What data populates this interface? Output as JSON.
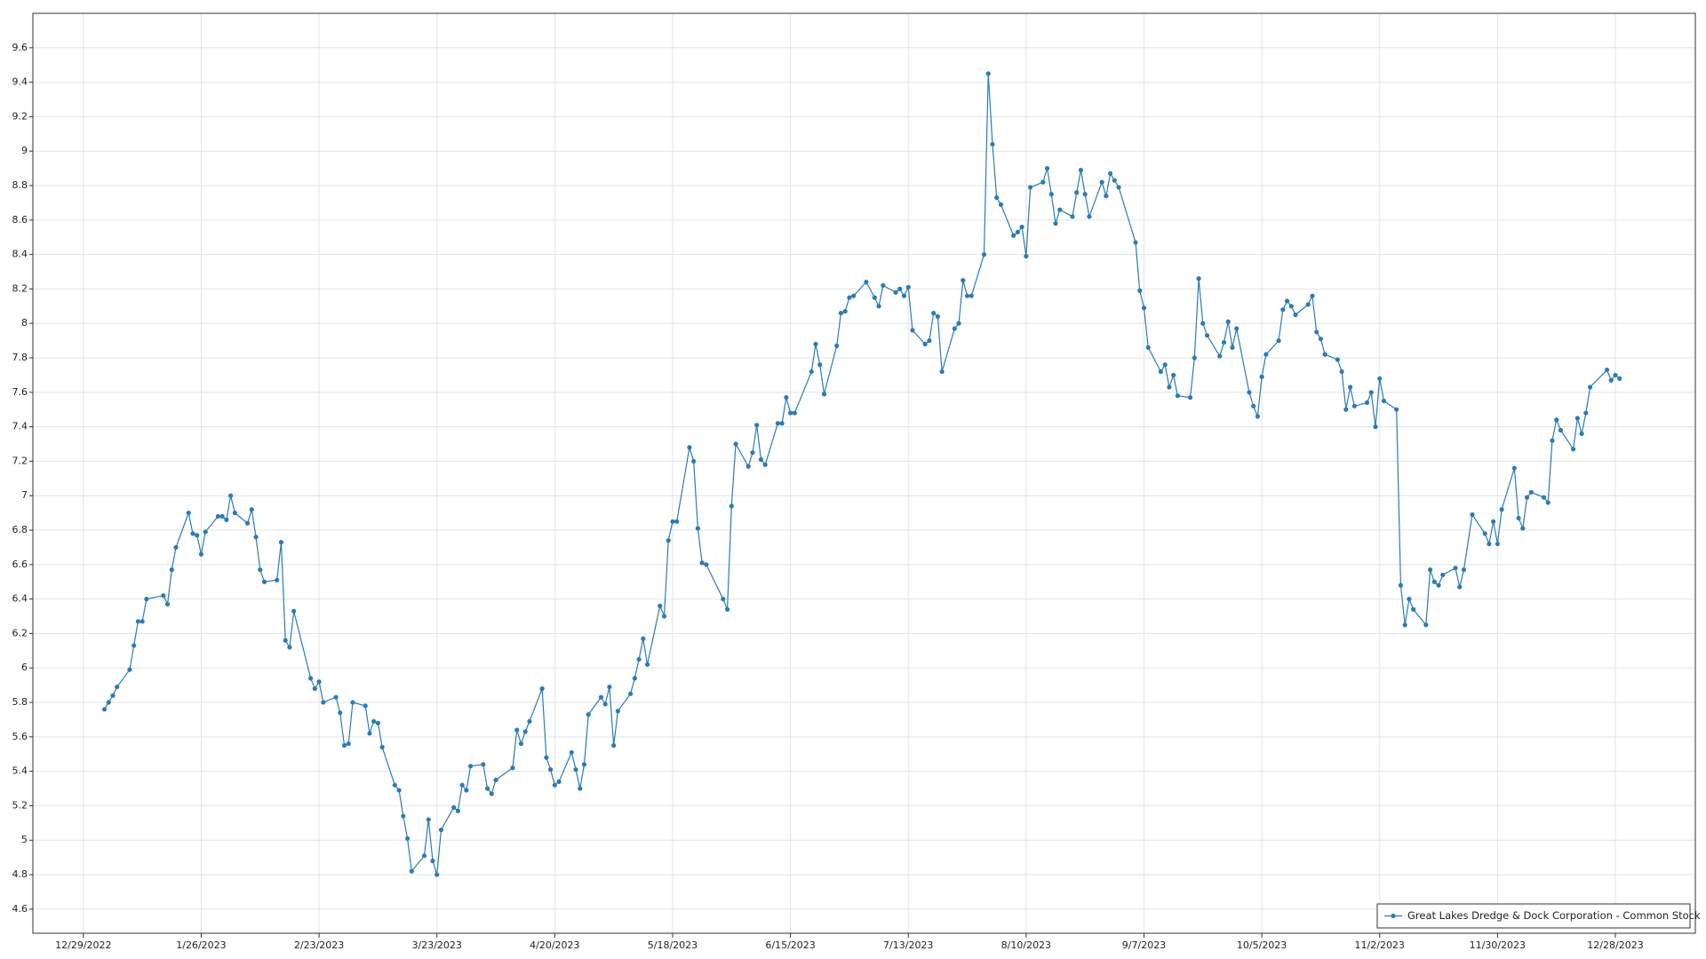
{
  "chart_data": {
    "type": "line",
    "x": [
      "1/3/2023",
      "1/4/2023",
      "1/5/2023",
      "1/6/2023",
      "1/9/2023",
      "1/10/2023",
      "1/11/2023",
      "1/12/2023",
      "1/13/2023",
      "1/17/2023",
      "1/18/2023",
      "1/19/2023",
      "1/20/2023",
      "1/23/2023",
      "1/24/2023",
      "1/25/2023",
      "1/26/2023",
      "1/27/2023",
      "1/30/2023",
      "1/31/2023",
      "2/1/2023",
      "2/2/2023",
      "2/3/2023",
      "2/6/2023",
      "2/7/2023",
      "2/8/2023",
      "2/9/2023",
      "2/10/2023",
      "2/13/2023",
      "2/14/2023",
      "2/15/2023",
      "2/16/2023",
      "2/17/2023",
      "2/21/2023",
      "2/22/2023",
      "2/23/2023",
      "2/24/2023",
      "2/27/2023",
      "2/28/2023",
      "3/1/2023",
      "3/2/2023",
      "3/3/2023",
      "3/6/2023",
      "3/7/2023",
      "3/8/2023",
      "3/9/2023",
      "3/10/2023",
      "3/13/2023",
      "3/14/2023",
      "3/15/2023",
      "3/16/2023",
      "3/17/2023",
      "3/20/2023",
      "3/21/2023",
      "3/22/2023",
      "3/23/2023",
      "3/24/2023",
      "3/27/2023",
      "3/28/2023",
      "3/29/2023",
      "3/30/2023",
      "3/31/2023",
      "4/3/2023",
      "4/4/2023",
      "4/5/2023",
      "4/6/2023",
      "4/10/2023",
      "4/11/2023",
      "4/12/2023",
      "4/13/2023",
      "4/14/2023",
      "4/17/2023",
      "4/18/2023",
      "4/19/2023",
      "4/20/2023",
      "4/21/2023",
      "4/24/2023",
      "4/25/2023",
      "4/26/2023",
      "4/27/2023",
      "4/28/2023",
      "5/1/2023",
      "5/2/2023",
      "5/3/2023",
      "5/4/2023",
      "5/5/2023",
      "5/8/2023",
      "5/9/2023",
      "5/10/2023",
      "5/11/2023",
      "5/12/2023",
      "5/15/2023",
      "5/16/2023",
      "5/17/2023",
      "5/18/2023",
      "5/19/2023",
      "5/22/2023",
      "5/23/2023",
      "5/24/2023",
      "5/25/2023",
      "5/26/2023",
      "5/30/2023",
      "5/31/2023",
      "6/1/2023",
      "6/2/2023",
      "6/5/2023",
      "6/6/2023",
      "6/7/2023",
      "6/8/2023",
      "6/9/2023",
      "6/12/2023",
      "6/13/2023",
      "6/14/2023",
      "6/15/2023",
      "6/16/2023",
      "6/20/2023",
      "6/21/2023",
      "6/22/2023",
      "6/23/2023",
      "6/26/2023",
      "6/27/2023",
      "6/28/2023",
      "6/29/2023",
      "6/30/2023",
      "7/3/2023",
      "7/5/2023",
      "7/6/2023",
      "7/7/2023",
      "7/10/2023",
      "7/11/2023",
      "7/12/2023",
      "7/13/2023",
      "7/14/2023",
      "7/17/2023",
      "7/18/2023",
      "7/19/2023",
      "7/20/2023",
      "7/21/2023",
      "7/24/2023",
      "7/25/2023",
      "7/26/2023",
      "7/27/2023",
      "7/28/2023",
      "7/31/2023",
      "8/1/2023",
      "8/2/2023",
      "8/3/2023",
      "8/4/2023",
      "8/7/2023",
      "8/8/2023",
      "8/9/2023",
      "8/10/2023",
      "8/11/2023",
      "8/14/2023",
      "8/15/2023",
      "8/16/2023",
      "8/17/2023",
      "8/18/2023",
      "8/21/2023",
      "8/22/2023",
      "8/23/2023",
      "8/24/2023",
      "8/25/2023",
      "8/28/2023",
      "8/29/2023",
      "8/30/2023",
      "8/31/2023",
      "9/1/2023",
      "9/5/2023",
      "9/6/2023",
      "9/7/2023",
      "9/8/2023",
      "9/11/2023",
      "9/12/2023",
      "9/13/2023",
      "9/14/2023",
      "9/15/2023",
      "9/18/2023",
      "9/19/2023",
      "9/20/2023",
      "9/21/2023",
      "9/22/2023",
      "9/25/2023",
      "9/26/2023",
      "9/27/2023",
      "9/28/2023",
      "9/29/2023",
      "10/2/2023",
      "10/3/2023",
      "10/4/2023",
      "10/5/2023",
      "10/6/2023",
      "10/9/2023",
      "10/10/2023",
      "10/11/2023",
      "10/12/2023",
      "10/13/2023",
      "10/16/2023",
      "10/17/2023",
      "10/18/2023",
      "10/19/2023",
      "10/20/2023",
      "10/23/2023",
      "10/24/2023",
      "10/25/2023",
      "10/26/2023",
      "10/27/2023",
      "10/30/2023",
      "10/31/2023",
      "11/1/2023",
      "11/2/2023",
      "11/3/2023",
      "11/6/2023",
      "11/7/2023",
      "11/8/2023",
      "11/9/2023",
      "11/10/2023",
      "11/13/2023",
      "11/14/2023",
      "11/15/2023",
      "11/16/2023",
      "11/17/2023",
      "11/20/2023",
      "11/21/2023",
      "11/22/2023",
      "11/24/2023",
      "11/27/2023",
      "11/28/2023",
      "11/29/2023",
      "11/30/2023",
      "12/1/2023",
      "12/4/2023",
      "12/5/2023",
      "12/6/2023",
      "12/7/2023",
      "12/8/2023",
      "12/11/2023",
      "12/12/2023",
      "12/13/2023",
      "12/14/2023",
      "12/15/2023",
      "12/18/2023",
      "12/19/2023",
      "12/20/2023",
      "12/21/2023",
      "12/22/2023",
      "12/26/2023",
      "12/27/2023",
      "12/28/2023",
      "12/29/2023"
    ],
    "series": [
      {
        "name": "Great Lakes Dredge & Dock Corporation - Common Stock",
        "color": "#2b7bb5",
        "values": [
          5.76,
          5.8,
          5.84,
          5.89,
          5.99,
          6.13,
          6.27,
          6.27,
          6.4,
          6.42,
          6.37,
          6.57,
          6.7,
          6.9,
          6.78,
          6.77,
          6.66,
          6.79,
          6.88,
          6.88,
          6.86,
          7.0,
          6.9,
          6.84,
          6.92,
          6.76,
          6.57,
          6.5,
          6.51,
          6.73,
          6.16,
          6.12,
          6.33,
          5.94,
          5.88,
          5.92,
          5.8,
          5.83,
          5.74,
          5.55,
          5.56,
          5.8,
          5.78,
          5.62,
          5.69,
          5.68,
          5.54,
          5.32,
          5.29,
          5.14,
          5.01,
          4.82,
          4.91,
          5.12,
          4.88,
          4.8,
          5.06,
          5.19,
          5.17,
          5.32,
          5.29,
          5.43,
          5.44,
          5.3,
          5.27,
          5.35,
          5.42,
          5.64,
          5.56,
          5.63,
          5.69,
          5.88,
          5.48,
          5.41,
          5.32,
          5.34,
          5.51,
          5.41,
          5.3,
          5.44,
          5.73,
          5.83,
          5.79,
          5.89,
          5.55,
          5.75,
          5.85,
          5.94,
          6.05,
          6.17,
          6.02,
          6.36,
          6.3,
          6.74,
          6.85,
          6.85,
          7.28,
          7.2,
          6.81,
          6.61,
          6.6,
          6.4,
          6.34,
          6.94,
          7.3,
          7.17,
          7.25,
          7.41,
          7.21,
          7.18,
          7.42,
          7.42,
          7.57,
          7.48,
          7.48,
          7.72,
          7.88,
          7.76,
          7.59,
          7.87,
          8.06,
          8.07,
          8.15,
          8.16,
          8.24,
          8.15,
          8.1,
          8.22,
          8.18,
          8.2,
          8.16,
          8.21,
          7.96,
          7.88,
          7.9,
          8.06,
          8.04,
          7.72,
          7.97,
          8.0,
          8.25,
          8.16,
          8.16,
          8.4,
          9.45,
          9.04,
          8.73,
          8.69,
          8.51,
          8.53,
          8.56,
          8.39,
          8.79,
          8.82,
          8.9,
          8.75,
          8.58,
          8.66,
          8.62,
          8.76,
          8.89,
          8.75,
          8.62,
          8.82,
          8.74,
          8.87,
          8.83,
          8.79,
          8.47,
          8.19,
          8.09,
          7.86,
          7.72,
          7.76,
          7.63,
          7.7,
          7.58,
          7.57,
          7.8,
          8.26,
          8.0,
          7.93,
          7.81,
          7.89,
          8.01,
          7.86,
          7.97,
          7.6,
          7.52,
          7.46,
          7.69,
          7.82,
          7.9,
          8.08,
          8.13,
          8.1,
          8.05,
          8.11,
          8.16,
          7.95,
          7.91,
          7.82,
          7.79,
          7.72,
          7.5,
          7.63,
          7.52,
          7.54,
          7.6,
          7.4,
          7.68,
          7.55,
          7.5,
          6.48,
          6.25,
          6.4,
          6.34,
          6.25,
          6.57,
          6.5,
          6.48,
          6.54,
          6.58,
          6.47,
          6.57,
          6.89,
          6.78,
          6.72,
          6.85,
          6.72,
          6.92,
          7.16,
          6.87,
          6.81,
          6.99,
          7.02,
          6.99,
          6.96,
          7.32,
          7.44,
          7.38,
          7.27,
          7.45,
          7.36,
          7.48,
          7.63,
          7.73,
          7.67,
          7.7,
          7.68
        ]
      }
    ],
    "xlim": [
      "12/17/2022",
      "1/16/2024"
    ],
    "xticks": [
      "12/29/2022",
      "1/26/2023",
      "2/23/2023",
      "3/23/2023",
      "4/20/2023",
      "5/18/2023",
      "6/15/2023",
      "7/13/2023",
      "8/10/2023",
      "9/7/2023",
      "10/5/2023",
      "11/2/2023",
      "11/30/2023",
      "12/28/2023"
    ],
    "ylim": [
      4.46,
      9.8
    ],
    "yticks": [
      4.6,
      4.8,
      5,
      5.2,
      5.4,
      5.6,
      5.8,
      6,
      6.2,
      6.4,
      6.6,
      6.8,
      7,
      7.2,
      7.4,
      7.6,
      7.8,
      8,
      8.2,
      8.4,
      8.6,
      8.8,
      9,
      9.2,
      9.4,
      9.6
    ],
    "grid": true,
    "legend": "lower right"
  }
}
